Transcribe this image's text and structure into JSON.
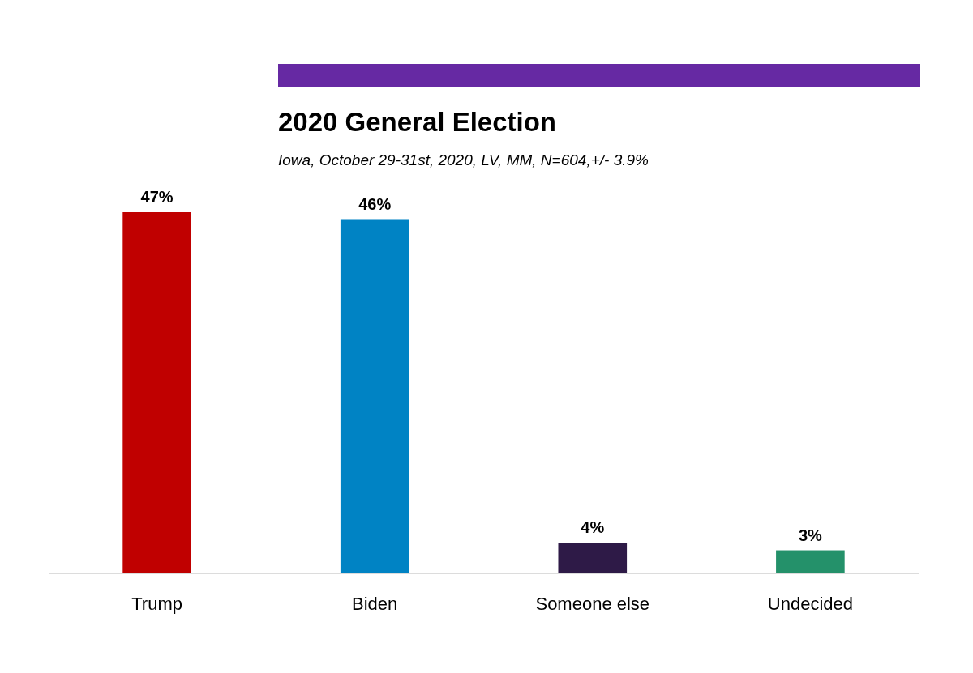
{
  "chart_data": {
    "type": "bar",
    "title": "2020 General Election",
    "subtitle": "Iowa, October 29-31st, 2020, LV, MM,  N=604,+/- 3.9%",
    "categories": [
      "Trump",
      "Biden",
      "Someone else",
      "Undecided"
    ],
    "values": [
      47,
      46,
      4,
      3
    ],
    "colors": [
      "#c00000",
      "#0083c4",
      "#2e1a47",
      "#24916a"
    ],
    "data_labels": true,
    "value_labels": [
      "47%",
      "46%",
      "4%",
      "3%"
    ]
  }
}
